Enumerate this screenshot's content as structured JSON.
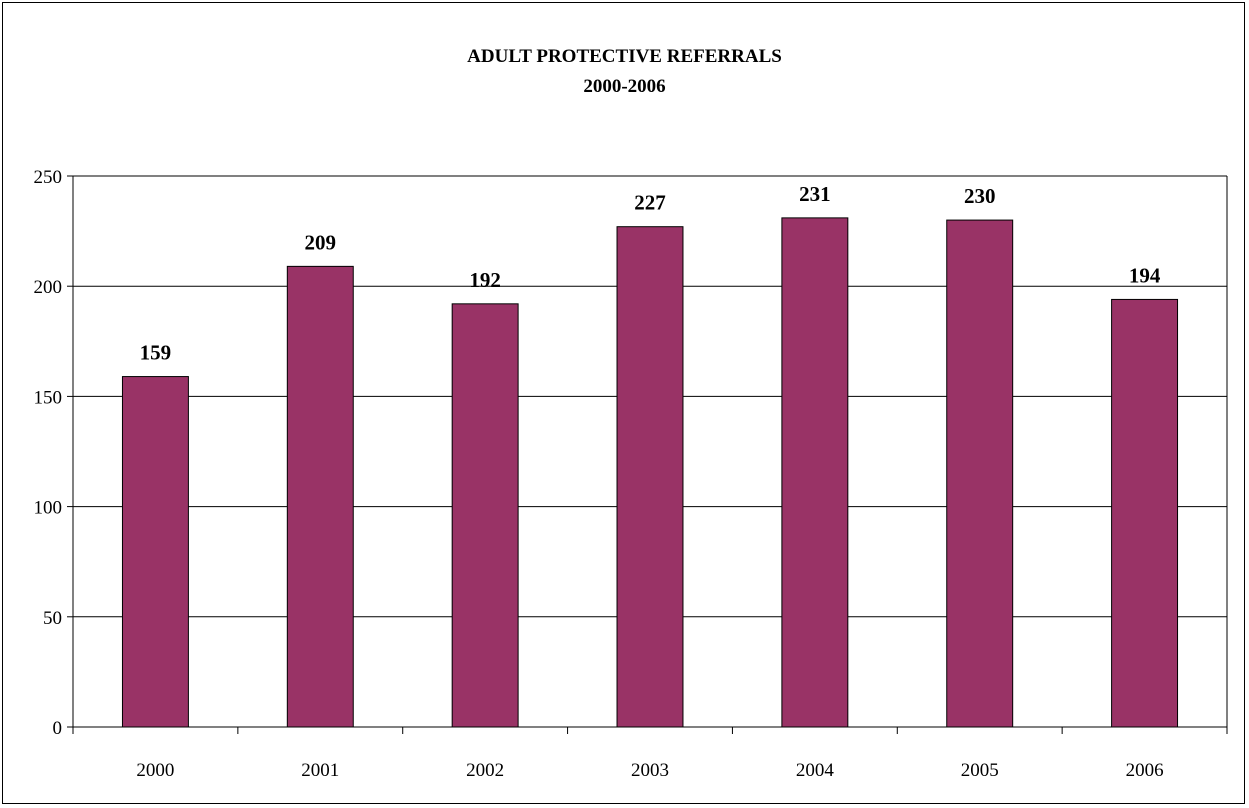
{
  "chart_data": {
    "type": "bar",
    "title": "ADULT PROTECTIVE REFERRALS",
    "subtitle": "2000-2006",
    "xlabel": "",
    "ylabel": "",
    "categories": [
      "2000",
      "2001",
      "2002",
      "2003",
      "2004",
      "2005",
      "2006"
    ],
    "values": [
      159,
      209,
      192,
      227,
      231,
      230,
      194
    ],
    "data_labels": [
      "159",
      "209",
      "192",
      "227",
      "231",
      "230",
      "194"
    ],
    "ylim": [
      0,
      250
    ],
    "yticks": [
      0,
      50,
      100,
      150,
      200,
      250
    ],
    "grid": true,
    "legend": "none",
    "bar_color": "#993366"
  }
}
